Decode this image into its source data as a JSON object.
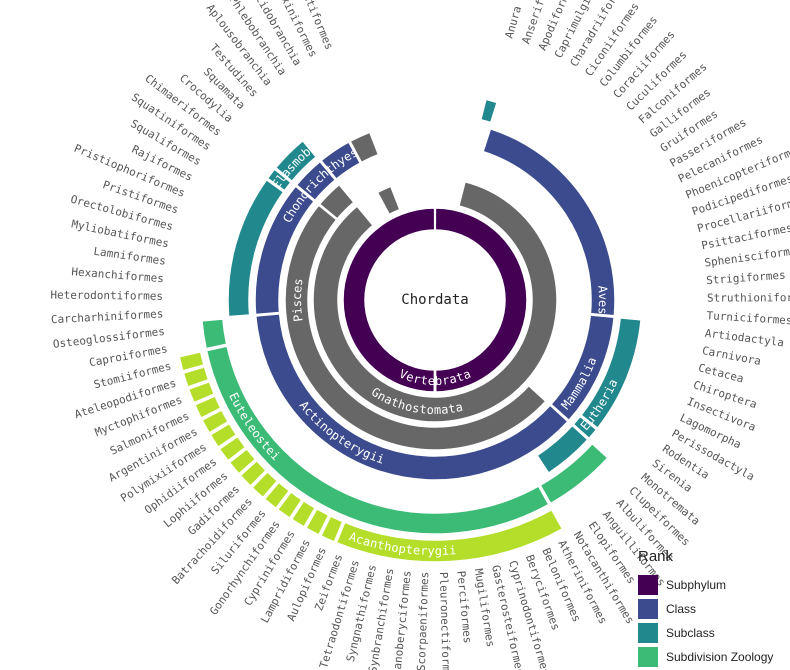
{
  "center_label": "Chordata",
  "ring_labels": [
    "Vertebrata",
    "Gnathostomata",
    "Pisces",
    "Chondrichthyes",
    "Actinopterygii",
    "Aves",
    "Mammalia",
    "Elasmobranchii",
    "Euteleostei",
    "Eutheria",
    "Acanthopterygii"
  ],
  "legend": {
    "title": "Rank",
    "items": [
      {
        "label": "Subphylum",
        "color": "#440154"
      },
      {
        "label": "Class",
        "color": "#3b4b8e"
      },
      {
        "label": "Subclass",
        "color": "#21888d"
      },
      {
        "label": "Subdivision Zoology",
        "color": "#3bbb75"
      }
    ]
  },
  "colors": {
    "subphylum": "#440154",
    "class": "#3b4b8e",
    "subclass": "#21888d",
    "subdivision": "#3bbb75",
    "order_group": "#b5de2b",
    "unranked": "#676767"
  },
  "orders": [
    "Anura",
    "Anseriformes",
    "Apodiformes",
    "Caprimulgiformes",
    "Charadriiformes",
    "Ciconiiformes",
    "Columbiformes",
    "Coraciiformes",
    "Cuculiformes",
    "Falconiformes",
    "Galliformes",
    "Gruiformes",
    "Passeriformes",
    "Pelecaniformes",
    "Phoenicopteriformes",
    "Podicipediformes",
    "Procellariiformes",
    "Psittaciformes",
    "Sphenisciformes",
    "Strigiformes",
    "Struthioniformes",
    "Turniciformes",
    "Artiodactyla",
    "Carnivora",
    "Cetacea",
    "Chiroptera",
    "Insectivora",
    "Lagomorpha",
    "Perissodactyla",
    "Rodentia",
    "Sirenia",
    "Monotremata",
    "Clupeiformes",
    "Albuliformes",
    "Anguilliformes",
    "Elopiformes",
    "Notacanthiformes",
    "Atheriniformes",
    "Beloniformes",
    "Beryciformes",
    "Cyprinodontiformes",
    "Gasterosteiformes",
    "Mugiliformes",
    "Perciformes",
    "Pleuronectiformes",
    "Scorpaeniformes",
    "Stephanoberyciformes",
    "Synbranchiformes",
    "Syngnathiformes",
    "Tetraodontiformes",
    "Zeiformes",
    "Aulopiformes",
    "Lampridiformes",
    "Cypriniformes",
    "Gonorhynchiformes",
    "Siluriformes",
    "Batrachoidiformes",
    "Gadiformes",
    "Lophiiformes",
    "Ophidiiformes",
    "Polymixiiformes",
    "Argentiniformes",
    "Salmoniformes",
    "Myctophiformes",
    "Ateleopodiformes",
    "Stomiiformes",
    "Caproiformes",
    "Osteoglossiformes",
    "Carcharhiniformes",
    "Heterodontiformes",
    "Hexanchiformes",
    "Lamniformes",
    "Myliobatiformes",
    "Orectolobiformes",
    "Pristiformes",
    "Pristiophoriformes",
    "Rajiformes",
    "Squaliformes",
    "Squatiniformes",
    "Chimaeriformes",
    "Crocodylia",
    "Squamata",
    "Testudines",
    "Aplousobranchia",
    "Phlebobranchia",
    "Stolidobranchia",
    "Myxiniformes",
    "Petromyzontiformes"
  ]
}
